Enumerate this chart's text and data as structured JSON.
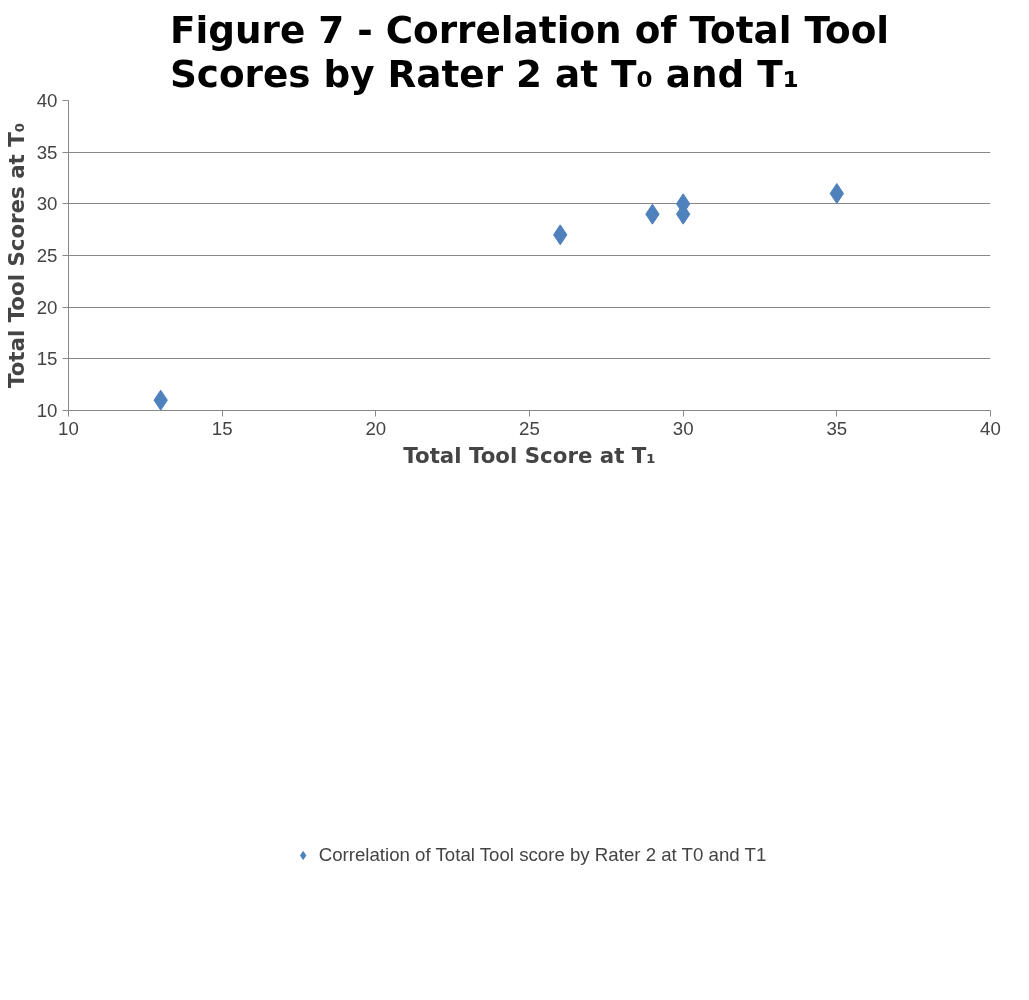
{
  "chart_data": {
    "type": "scatter",
    "title": "Figure 7 - Correlation of Total Tool Scores by Rater 2 at T₀ and T₁",
    "xlabel": "Total Tool Score at T₁",
    "ylabel": "Total Tool Scores at T₀",
    "x": [
      13,
      26,
      29,
      30,
      30,
      35
    ],
    "series": [
      {
        "name": "Correlation of Total Tool score by Rater 2 at T0 and T1",
        "color": "#4f81bd",
        "values": [
          11,
          27,
          29,
          30,
          29,
          31
        ]
      }
    ],
    "xlim": [
      10,
      40
    ],
    "xticks": [
      10,
      15,
      20,
      25,
      30,
      35,
      40
    ],
    "ylim": [
      10,
      40
    ],
    "yticks": [
      10,
      15,
      20,
      25,
      30,
      35,
      40
    ],
    "grid": "y",
    "legend": "bottom",
    "marker": "diamond"
  }
}
